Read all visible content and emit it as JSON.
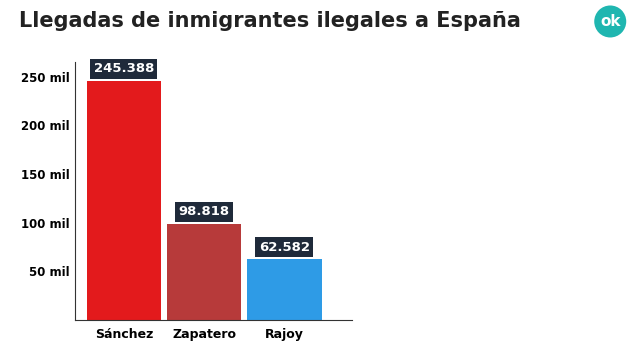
{
  "chart_data": {
    "type": "bar",
    "title": "Llegadas de inmigrantes ilegales a España",
    "logo": "ok",
    "categories": [
      "Sánchez",
      "Zapatero",
      "Rajoy"
    ],
    "values": [
      245388,
      98818,
      62582
    ],
    "value_labels": [
      "245.388",
      "98.818",
      "62.582"
    ],
    "colors": [
      "#e31a1c",
      "#b73a3a",
      "#2e9be6"
    ],
    "ylim": [
      0,
      265000
    ],
    "yticks": [
      {
        "value": 50000,
        "label": "50 mil"
      },
      {
        "value": 100000,
        "label": "100 mil"
      },
      {
        "value": 150000,
        "label": "150 mil"
      },
      {
        "value": 200000,
        "label": "200 mil"
      },
      {
        "value": 250000,
        "label": "250 mil"
      }
    ],
    "data_labels": true,
    "grid": false
  }
}
